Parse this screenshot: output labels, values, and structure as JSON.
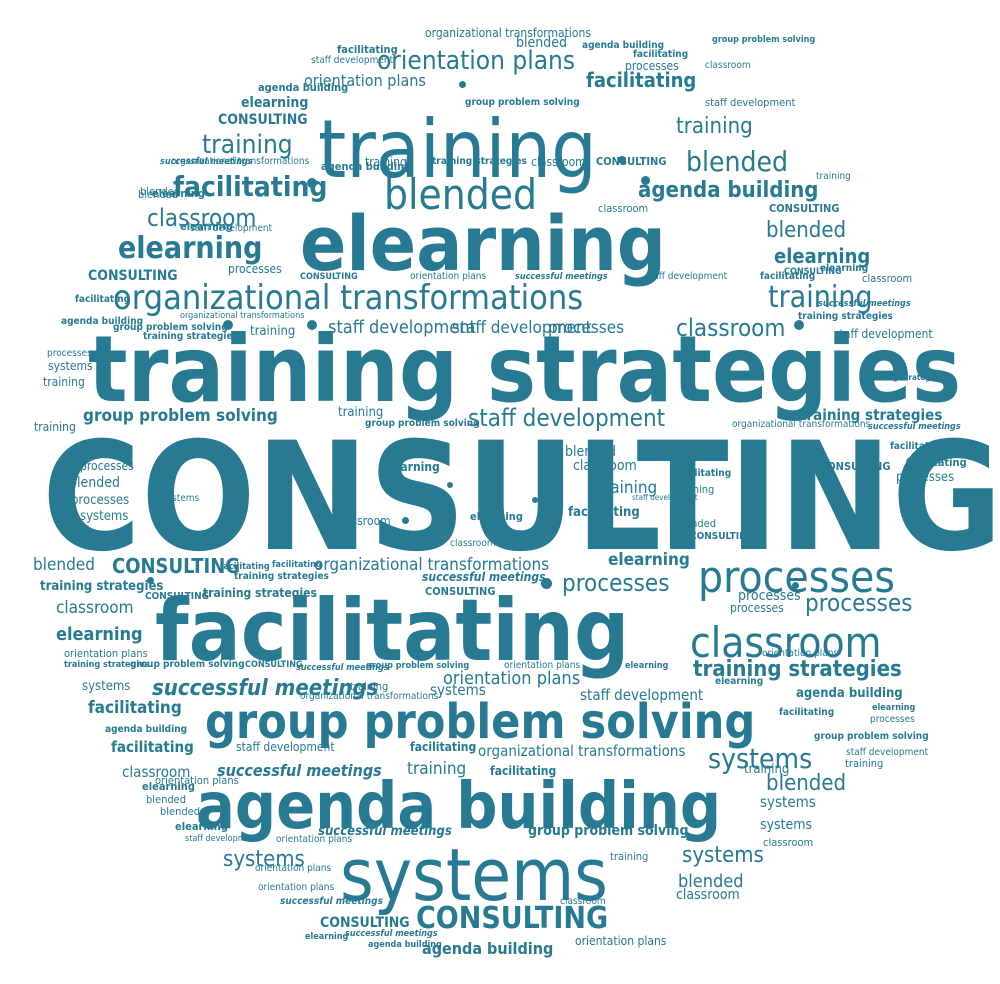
{
  "word_cloud": {
    "color": "#277a92",
    "background": "#ffffff",
    "words": [
      "CONSULTING",
      "training strategies",
      "facilitating",
      "elearning",
      "training",
      "agenda building",
      "group problem solving",
      "systems",
      "processes",
      "classroom",
      "organizational transformations",
      "blended",
      "staff development",
      "successful meetings",
      "orientation plans"
    ]
  }
}
